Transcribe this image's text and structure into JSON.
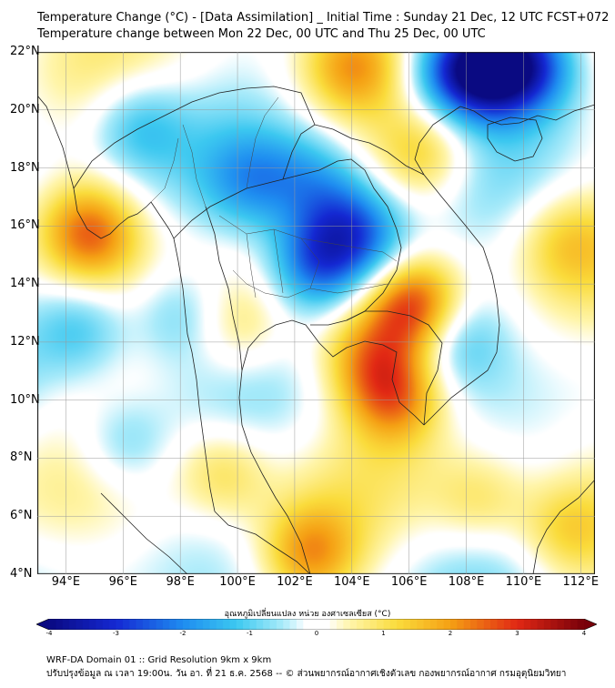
{
  "header": {
    "title_line1": "Temperature Change (°C) - [Data Assimilation] _ Initial Time : Sunday 21 Dec, 12 UTC FCST+072",
    "title_line2": "Temperature change between Mon 22 Dec, 00 UTC and Thu 25 Dec, 00 UTC"
  },
  "map": {
    "lat_labels": [
      "22°N",
      "20°N",
      "18°N",
      "16°N",
      "14°N",
      "12°N",
      "10°N",
      "8°N",
      "6°N",
      "4°N"
    ],
    "lon_labels": [
      "94°E",
      "96°E",
      "98°E",
      "100°E",
      "102°E",
      "104°E",
      "106°E",
      "108°E",
      "110°E",
      "112°E"
    ],
    "lat_range": [
      4,
      22
    ],
    "lon_range": [
      93,
      112.5
    ],
    "anomalies": [
      {
        "lon": 109,
        "lat": 21.5,
        "value": -3.8
      },
      {
        "lon": 107.5,
        "lat": 21.3,
        "value": -2.2
      },
      {
        "lon": 110.5,
        "lat": 21.6,
        "value": -1.8
      },
      {
        "lon": 102.8,
        "lat": 14.7,
        "value": -2.6
      },
      {
        "lon": 104.5,
        "lat": 15.5,
        "value": -1.8
      },
      {
        "lon": 103.5,
        "lat": 16.5,
        "value": -1.4
      },
      {
        "lon": 102.5,
        "lat": 17.8,
        "value": -1.0
      },
      {
        "lon": 100.5,
        "lat": 17.5,
        "value": -1.3
      },
      {
        "lon": 96.5,
        "lat": 19.5,
        "value": -1.2
      },
      {
        "lon": 94.5,
        "lat": 12.5,
        "value": -1.2
      },
      {
        "lon": 96,
        "lat": 8.5,
        "value": -1.1
      },
      {
        "lon": 98,
        "lat": 13,
        "value": -1.0
      },
      {
        "lon": 106.2,
        "lat": 13.2,
        "value": 3.0
      },
      {
        "lon": 105.5,
        "lat": 10.2,
        "value": 2.2
      },
      {
        "lon": 104.5,
        "lat": 11.5,
        "value": 1.6
      },
      {
        "lon": 94.8,
        "lat": 15.8,
        "value": 2.3
      },
      {
        "lon": 102.5,
        "lat": 4.7,
        "value": 1.9
      },
      {
        "lon": 104,
        "lat": 21.5,
        "value": 1.6
      },
      {
        "lon": 106.5,
        "lat": 18.5,
        "value": 1.4
      },
      {
        "lon": 99.5,
        "lat": 7.5,
        "value": 1.2
      },
      {
        "lon": 100,
        "lat": 12.5,
        "value": 1.0
      },
      {
        "lon": 111.5,
        "lat": 15.5,
        "value": 1.0
      },
      {
        "lon": 108.5,
        "lat": 6.5,
        "value": 1.0
      },
      {
        "lon": 111.5,
        "lat": 5.5,
        "value": 1.2
      },
      {
        "lon": 107.5,
        "lat": 12.2,
        "value": -1.2
      }
    ]
  },
  "colorbar": {
    "label": "อุณหภูมิเปลี่ยนแปลง หน่วย องศาเซลเซียส (°C)",
    "ticks": [
      "-4",
      "-3",
      "-2",
      "-1",
      "0",
      "1",
      "2",
      "3",
      "4"
    ],
    "min": -4,
    "max": 4
  },
  "footer": {
    "line1": "WRF-DA Domain 01 :: Grid Resolution 9km x 9km",
    "line2": "ปรับปรุงข้อมูล ณ เวลา 19:00น. วัน อา. ที่ 21 ธ.ค. 2568 -- © ส่วนพยากรณ์อากาศเชิงตัวเลข กองพยากรณ์อากาศ กรมอุตุนิยมวิทยา"
  }
}
